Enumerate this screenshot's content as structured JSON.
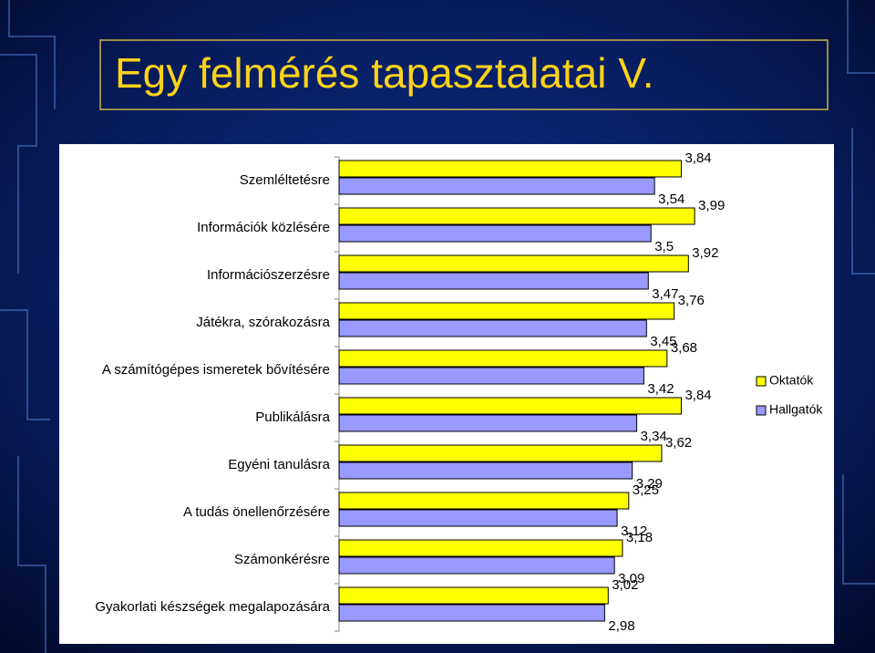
{
  "chart_data": {
    "type": "bar",
    "orientation": "horizontal",
    "title": "Egy felmérés tapasztalatai V.",
    "categories": [
      "Szemléltetésre",
      "Információk közlésére",
      "Információszerzésre",
      "Játékra, szórakozásra",
      "A számítógépes ismeretek bővítésére",
      "Publikálásra",
      "Egyéni tanulásra",
      "A tudás önellenőrzésére",
      "Számonkérésre",
      "Gyakorlati készségek megalapozására"
    ],
    "series": [
      {
        "name": "Oktatók",
        "color": "#ffff00",
        "values": [
          3.84,
          3.99,
          3.92,
          3.76,
          3.68,
          3.84,
          3.62,
          3.25,
          3.18,
          3.02
        ],
        "value_labels": [
          "3,84",
          "3,99",
          "3,92",
          "3,76",
          "3,68",
          "3,84",
          "3,62",
          "3,25",
          "3,18",
          "3,02"
        ]
      },
      {
        "name": "Hallgatók",
        "color": "#9999ff",
        "values": [
          3.54,
          3.5,
          3.47,
          3.45,
          3.42,
          3.34,
          3.29,
          3.12,
          3.09,
          2.98
        ],
        "value_labels": [
          "3,54",
          "3,5",
          "3,47",
          "3,45",
          "3,42",
          "3,34",
          "3,29",
          "3,12",
          "3,09",
          "2,98"
        ]
      }
    ],
    "xlim": [
      0,
      4.5
    ],
    "legend": "right"
  }
}
